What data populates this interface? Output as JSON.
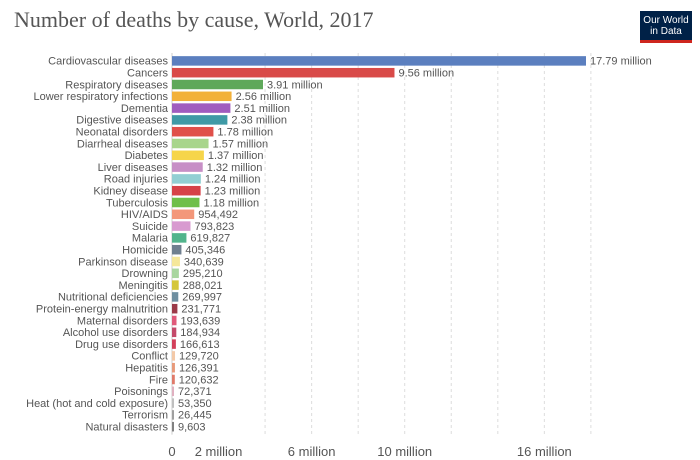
{
  "header": {
    "title": "Number of deaths by cause, World, 2017",
    "logo_line1": "Our World",
    "logo_line2": "in Data"
  },
  "colors": {
    "logo_background": "#002147",
    "logo_accent": "#ce261e",
    "gridline": "#dddddd",
    "label_text": "#555555"
  },
  "chart_data": {
    "type": "bar",
    "orientation": "horizontal",
    "title": "Number of deaths by cause, World, 2017",
    "grid": true,
    "xlim": [
      0,
      20000000
    ],
    "x_ticks": [
      {
        "value": 0,
        "label": "0"
      },
      {
        "value": 2000000,
        "label": "2 million"
      },
      {
        "value": 6000000,
        "label": "6 million"
      },
      {
        "value": 10000000,
        "label": "10 million"
      },
      {
        "value": 16000000,
        "label": "16 million"
      }
    ],
    "gridline_values": [
      4000000,
      6000000,
      8000000,
      10000000,
      12000000,
      14000000,
      16000000,
      18000000
    ],
    "bars": [
      {
        "category": "Cardiovascular diseases",
        "value": 17790000,
        "label": "17.79 million",
        "color": "#5b7fbf"
      },
      {
        "category": "Cancers",
        "value": 9560000,
        "label": "9.56 million",
        "color": "#d94a48"
      },
      {
        "category": "Respiratory diseases",
        "value": 3910000,
        "label": "3.91 million",
        "color": "#5ea85a"
      },
      {
        "category": "Lower respiratory infections",
        "value": 2560000,
        "label": "2.56 million",
        "color": "#f2b13a"
      },
      {
        "category": "Dementia",
        "value": 2510000,
        "label": "2.51 million",
        "color": "#a05cbf"
      },
      {
        "category": "Digestive diseases",
        "value": 2380000,
        "label": "2.38 million",
        "color": "#3f9aa6"
      },
      {
        "category": "Neonatal disorders",
        "value": 1780000,
        "label": "1.78 million",
        "color": "#e0504a"
      },
      {
        "category": "Diarrheal diseases",
        "value": 1570000,
        "label": "1.57 million",
        "color": "#a8d58c"
      },
      {
        "category": "Diabetes",
        "value": 1370000,
        "label": "1.37 million",
        "color": "#f6d54a"
      },
      {
        "category": "Liver diseases",
        "value": 1320000,
        "label": "1.32 million",
        "color": "#c78fc6"
      },
      {
        "category": "Road injuries",
        "value": 1240000,
        "label": "1.24 million",
        "color": "#92cfd3"
      },
      {
        "category": "Kidney disease",
        "value": 1230000,
        "label": "1.23 million",
        "color": "#d64248"
      },
      {
        "category": "Tuberculosis",
        "value": 1180000,
        "label": "1.18 million",
        "color": "#6fbf4a"
      },
      {
        "category": "HIV/AIDS",
        "value": 954492,
        "label": "954,492",
        "color": "#f3977a"
      },
      {
        "category": "Suicide",
        "value": 793823,
        "label": "793,823",
        "color": "#d89ad0"
      },
      {
        "category": "Malaria",
        "value": 619827,
        "label": "619,827",
        "color": "#52b48c"
      },
      {
        "category": "Homicide",
        "value": 405346,
        "label": "405,346",
        "color": "#6f7f8f"
      },
      {
        "category": "Parkinson disease",
        "value": 340639,
        "label": "340,639",
        "color": "#f5e79a"
      },
      {
        "category": "Drowning",
        "value": 295210,
        "label": "295,210",
        "color": "#a9d6a0"
      },
      {
        "category": "Meningitis",
        "value": 288021,
        "label": "288,021",
        "color": "#d4c63a"
      },
      {
        "category": "Nutritional deficiencies",
        "value": 269997,
        "label": "269,997",
        "color": "#6f8fa0"
      },
      {
        "category": "Protein-energy malnutrition",
        "value": 231771,
        "label": "231,771",
        "color": "#9b3a48"
      },
      {
        "category": "Maternal disorders",
        "value": 193639,
        "label": "193,639",
        "color": "#e05a7a"
      },
      {
        "category": "Alcohol use disorders",
        "value": 184934,
        "label": "184,934",
        "color": "#c44a6a"
      },
      {
        "category": "Drug use disorders",
        "value": 166613,
        "label": "166,613",
        "color": "#d2405a"
      },
      {
        "category": "Conflict",
        "value": 129720,
        "label": "129,720",
        "color": "#f3c9a8"
      },
      {
        "category": "Hepatitis",
        "value": 126391,
        "label": "126,391",
        "color": "#e89a7a"
      },
      {
        "category": "Fire",
        "value": 120632,
        "label": "120,632",
        "color": "#e07a6a"
      },
      {
        "category": "Poisonings",
        "value": 72371,
        "label": "72,371",
        "color": "#e0b0c0"
      },
      {
        "category": "Heat (hot and cold exposure)",
        "value": 53350,
        "label": "53,350",
        "color": "#c0c0c0"
      },
      {
        "category": "Terrorism",
        "value": 26445,
        "label": "26,445",
        "color": "#a0a0a0"
      },
      {
        "category": "Natural disasters",
        "value": 9603,
        "label": "9,603",
        "color": "#808080"
      }
    ]
  }
}
